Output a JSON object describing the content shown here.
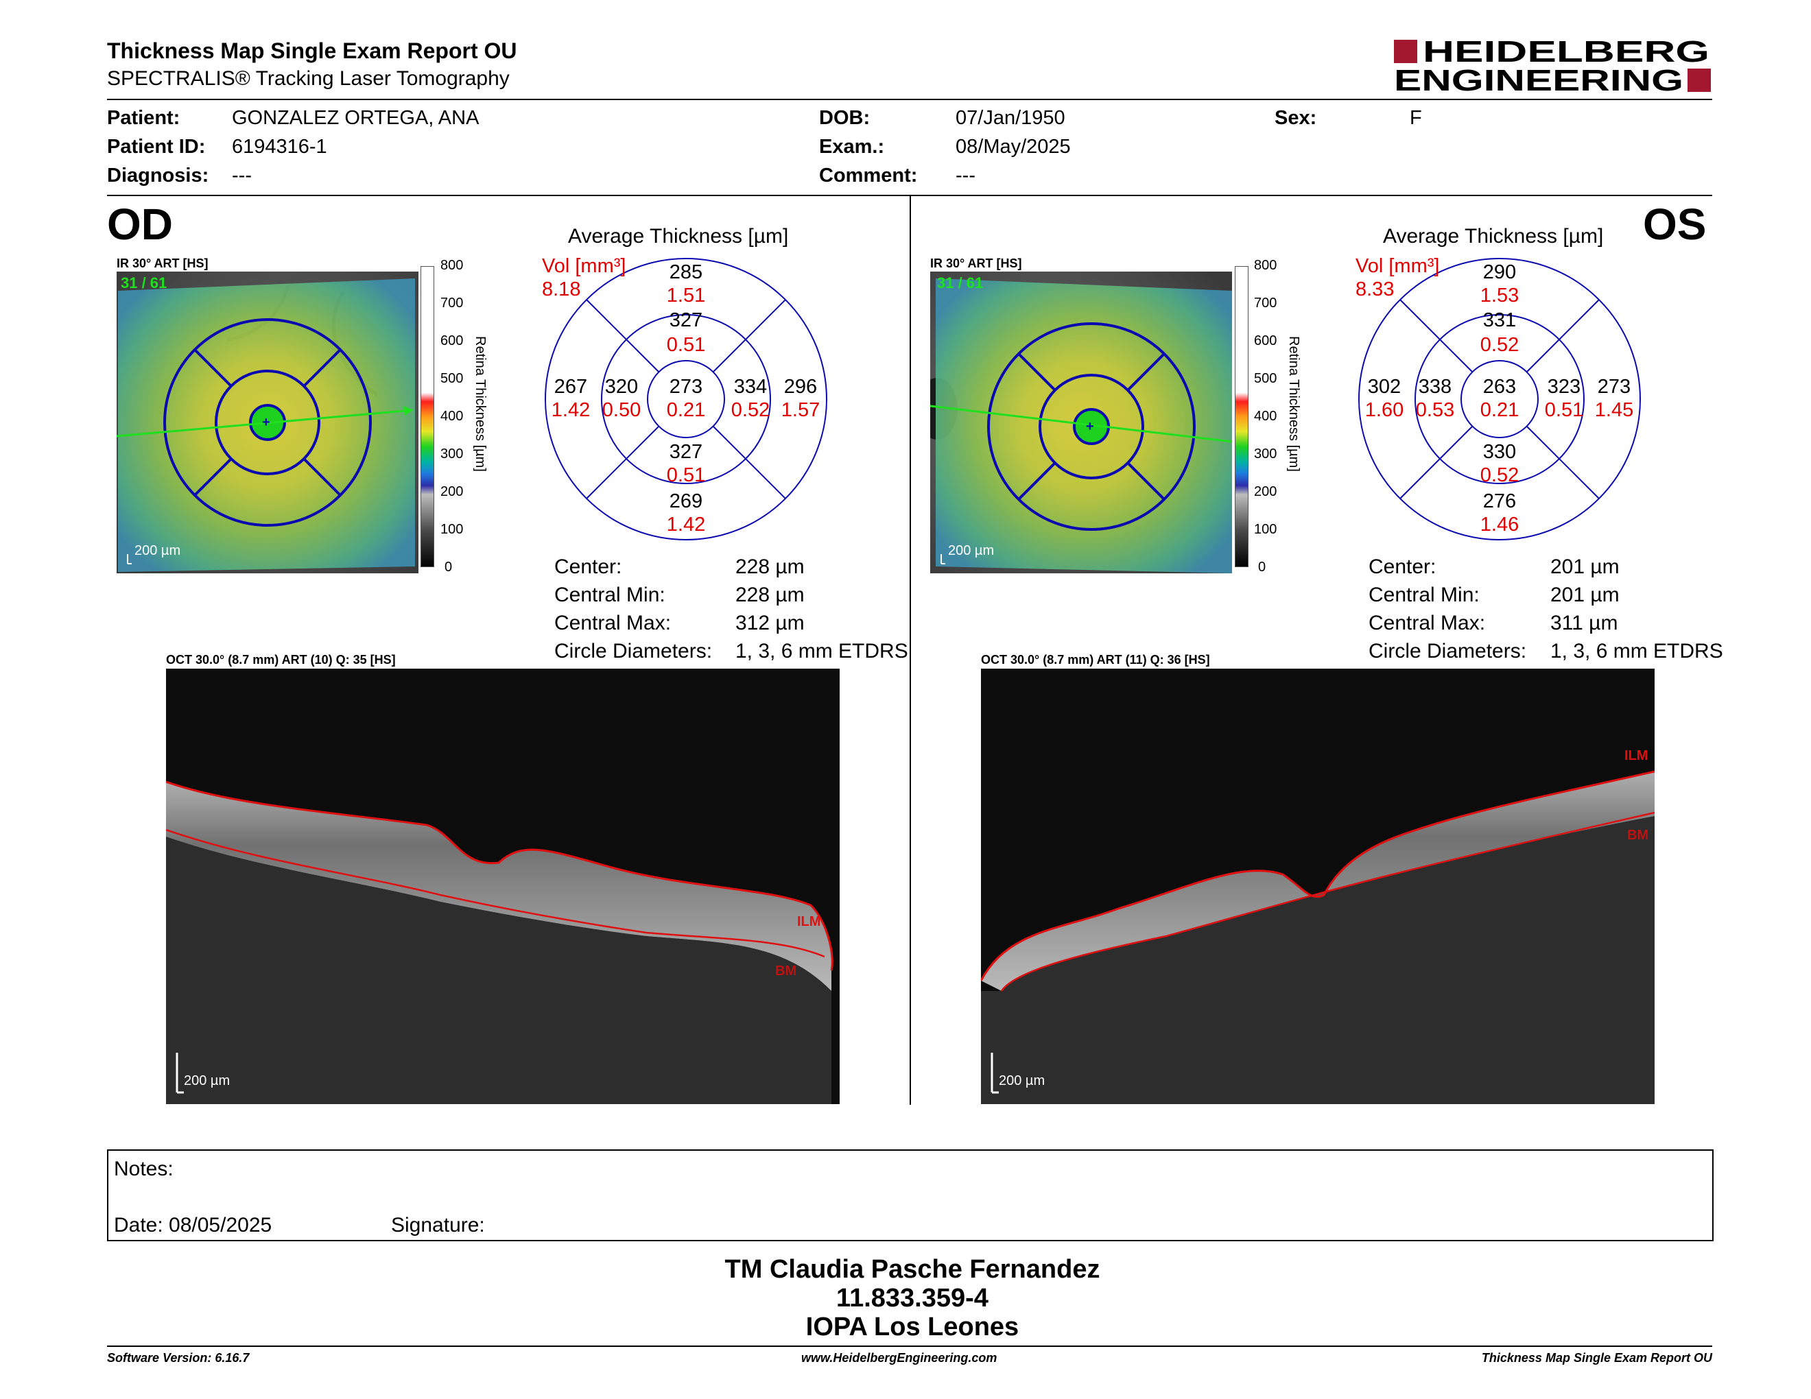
{
  "header": {
    "title": "Thickness Map Single Exam Report OU",
    "subtitle": "SPECTRALIS® Tracking Laser Tomography",
    "logo_line1": "HEIDELBERG",
    "logo_line2": "ENGINEERING"
  },
  "patient": {
    "patient_label": "Patient:",
    "patient_value": "GONZALEZ ORTEGA, ANA",
    "id_label": "Patient ID:",
    "id_value": "6194316-1",
    "diagnosis_label": "Diagnosis:",
    "diagnosis_value": "---",
    "dob_label": "DOB:",
    "dob_value": "07/Jan/1950",
    "exam_label": "Exam.:",
    "exam_value": "08/May/2025",
    "comment_label": "Comment:",
    "comment_value": "---",
    "sex_label": "Sex:",
    "sex_value": "F"
  },
  "od": {
    "eye": "OD",
    "ir_label": "IR 30° ART [HS]",
    "frame_counter": "31 / 61",
    "map_scale": "200 µm",
    "colorbar_ticks": [
      "800",
      "700",
      "600",
      "500",
      "400",
      "300",
      "200",
      "100",
      "0"
    ],
    "colorbar_label": "Retina Thickness [µm]",
    "avg_title": "Average Thickness [µm]",
    "vol_label": "Vol [mm³]",
    "vol_total": "8.18",
    "sectors": {
      "center_t": "273",
      "center_v": "0.21",
      "inner_sup_t": "327",
      "inner_sup_v": "0.51",
      "inner_inf_t": "327",
      "inner_inf_v": "0.51",
      "inner_left_t": "320",
      "inner_left_v": "0.50",
      "inner_right_t": "334",
      "inner_right_v": "0.52",
      "outer_sup_t": "285",
      "outer_sup_v": "1.51",
      "outer_inf_t": "269",
      "outer_inf_v": "1.42",
      "outer_left_t": "267",
      "outer_left_v": "1.42",
      "outer_right_t": "296",
      "outer_right_v": "1.57"
    },
    "stats": {
      "center_label": "Center:",
      "center_value": "228 µm",
      "min_label": "Central Min:",
      "min_value": "228 µm",
      "max_label": "Central Max:",
      "max_value": "312 µm",
      "circle_label": "Circle Diameters:",
      "circle_value": "1, 3, 6 mm ETDRS"
    },
    "oct_label": "OCT 30.0° (8.7 mm) ART (10) Q: 35 [HS]",
    "oct_scale": "200 µm",
    "ilm": "ILM",
    "bm": "BM"
  },
  "os": {
    "eye": "OS",
    "ir_label": "IR 30° ART [HS]",
    "frame_counter": "31 / 61",
    "map_scale": "200 µm",
    "colorbar_ticks": [
      "800",
      "700",
      "600",
      "500",
      "400",
      "300",
      "200",
      "100",
      "0"
    ],
    "colorbar_label": "Retina Thickness [µm]",
    "avg_title": "Average Thickness [µm]",
    "vol_label": "Vol [mm³]",
    "vol_total": "8.33",
    "sectors": {
      "center_t": "263",
      "center_v": "0.21",
      "inner_sup_t": "331",
      "inner_sup_v": "0.52",
      "inner_inf_t": "330",
      "inner_inf_v": "0.52",
      "inner_left_t": "338",
      "inner_left_v": "0.53",
      "inner_right_t": "323",
      "inner_right_v": "0.51",
      "outer_sup_t": "290",
      "outer_sup_v": "1.53",
      "outer_inf_t": "276",
      "outer_inf_v": "1.46",
      "outer_left_t": "302",
      "outer_left_v": "1.60",
      "outer_right_t": "273",
      "outer_right_v": "1.45"
    },
    "stats": {
      "center_label": "Center:",
      "center_value": "201 µm",
      "min_label": "Central Min:",
      "min_value": "201 µm",
      "max_label": "Central Max:",
      "max_value": "311 µm",
      "circle_label": "Circle Diameters:",
      "circle_value": "1, 3, 6 mm ETDRS"
    },
    "oct_label": "OCT 30.0° (8.7 mm) ART (11) Q: 36 [HS]",
    "oct_scale": "200 µm",
    "ilm": "ILM",
    "bm": "BM"
  },
  "notes": {
    "notes_label": "Notes:",
    "date_label": "Date: 08/05/2025",
    "signature_label": "Signature:"
  },
  "signature_block": {
    "line1": "TM Claudia Pasche Fernandez",
    "line2": "11.833.359-4",
    "line3": "IOPA Los Leones"
  },
  "footer": {
    "software": "Software Version: 6.16.7",
    "website": "www.HeidelbergEngineering.com",
    "report": "Thickness Map Single Exam Report OU"
  },
  "colors": {
    "brand_red": "#a3182f",
    "ring_blue": "#0a0ab0",
    "volume_red": "#e00000",
    "scan_green": "#1fe01f"
  }
}
